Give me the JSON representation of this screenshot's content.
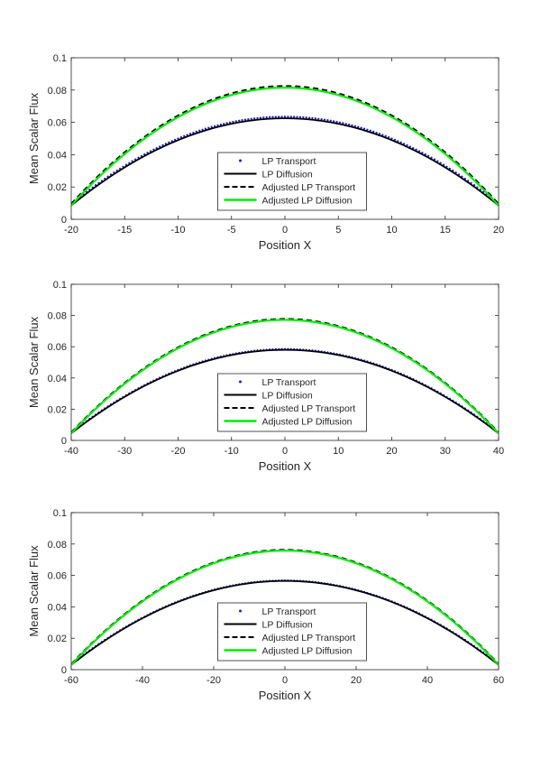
{
  "chart_data": [
    {
      "type": "line",
      "title": "",
      "xlabel": "Position X",
      "ylabel": "Mean Scalar Flux",
      "xlim": [
        -20,
        20
      ],
      "ylim": [
        0,
        0.1
      ],
      "xticks": [
        -20,
        -15,
        -10,
        -5,
        0,
        5,
        10,
        15,
        20
      ],
      "xtick_labels": [
        "-20",
        "-15",
        "-10",
        "-5",
        "0",
        "5",
        "10",
        "15",
        "20"
      ],
      "yticks": [
        0,
        0.02,
        0.04,
        0.06,
        0.08,
        0.1
      ],
      "ytick_labels": [
        "0",
        "0.02",
        "0.04",
        "0.06",
        "0.08",
        "0.1"
      ],
      "legend_location": "center-bottom",
      "series": [
        {
          "name": "LP Transport",
          "peak": 0.0635,
          "edge": 0.0095,
          "color": "#1a1ad6",
          "style": "dotted"
        },
        {
          "name": "LP Diffusion",
          "peak": 0.0625,
          "edge": 0.0085,
          "color": "#000000",
          "style": "solid"
        },
        {
          "name": "Adjusted LP Transport",
          "peak": 0.0825,
          "edge": 0.0095,
          "color": "#000000",
          "style": "dashed"
        },
        {
          "name": "Adjusted LP Diffusion",
          "peak": 0.0815,
          "edge": 0.0085,
          "color": "#00ee00",
          "style": "solid"
        }
      ]
    },
    {
      "type": "line",
      "title": "",
      "xlabel": "Position X",
      "ylabel": "Mean Scalar Flux",
      "xlim": [
        -40,
        40
      ],
      "ylim": [
        0,
        0.1
      ],
      "xticks": [
        -40,
        -30,
        -20,
        -10,
        0,
        10,
        20,
        30,
        40
      ],
      "xtick_labels": [
        "-40",
        "-30",
        "-20",
        "-10",
        "0",
        "10",
        "20",
        "30",
        "40"
      ],
      "yticks": [
        0,
        0.02,
        0.04,
        0.06,
        0.08,
        0.1
      ],
      "ytick_labels": [
        "0",
        "0.02",
        "0.04",
        "0.06",
        "0.08",
        "0.1"
      ],
      "legend_location": "center-bottom",
      "series": [
        {
          "name": "LP Transport",
          "peak": 0.0585,
          "edge": 0.005,
          "color": "#1a1ad6",
          "style": "dotted"
        },
        {
          "name": "LP Diffusion",
          "peak": 0.058,
          "edge": 0.0045,
          "color": "#000000",
          "style": "solid"
        },
        {
          "name": "Adjusted LP Transport",
          "peak": 0.0778,
          "edge": 0.005,
          "color": "#000000",
          "style": "dashed"
        },
        {
          "name": "Adjusted LP Diffusion",
          "peak": 0.0772,
          "edge": 0.0045,
          "color": "#00ee00",
          "style": "solid"
        }
      ]
    },
    {
      "type": "line",
      "title": "",
      "xlabel": "Position X",
      "ylabel": "Mean Scalar Flux",
      "xlim": [
        -60,
        60
      ],
      "ylim": [
        0,
        0.1
      ],
      "xticks": [
        -60,
        -40,
        -20,
        0,
        20,
        40,
        60
      ],
      "xtick_labels": [
        "-60",
        "-40",
        "-20",
        "0",
        "20",
        "40",
        "60"
      ],
      "yticks": [
        0,
        0.02,
        0.04,
        0.06,
        0.08,
        0.1
      ],
      "ytick_labels": [
        "0",
        "0.02",
        "0.04",
        "0.06",
        "0.08",
        "0.1"
      ],
      "legend_location": "center-bottom",
      "series": [
        {
          "name": "LP Transport",
          "peak": 0.0568,
          "edge": 0.0035,
          "color": "#1a1ad6",
          "style": "dotted"
        },
        {
          "name": "LP Diffusion",
          "peak": 0.0565,
          "edge": 0.003,
          "color": "#000000",
          "style": "solid"
        },
        {
          "name": "Adjusted LP Transport",
          "peak": 0.0763,
          "edge": 0.0035,
          "color": "#000000",
          "style": "dashed"
        },
        {
          "name": "Adjusted LP Diffusion",
          "peak": 0.0758,
          "edge": 0.003,
          "color": "#00ee00",
          "style": "solid"
        }
      ]
    }
  ]
}
